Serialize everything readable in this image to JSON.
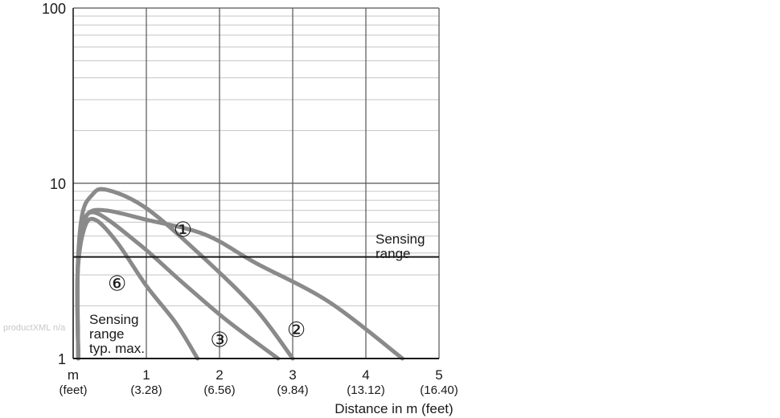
{
  "watermark": "productXML n/a",
  "chart_data": {
    "type": "line",
    "title": "",
    "xlabel": "Distance in m (feet)",
    "ylabel": "",
    "y_scale": "log",
    "ylim": [
      1,
      100
    ],
    "xlim": [
      0,
      5
    ],
    "grid": true,
    "x_ticks": [
      {
        "value": 0,
        "label": "m",
        "sub": "(feet)"
      },
      {
        "value": 1,
        "label": "1",
        "sub": "(3.28)"
      },
      {
        "value": 2,
        "label": "2",
        "sub": "(6.56)"
      },
      {
        "value": 3,
        "label": "3",
        "sub": "(9.84)"
      },
      {
        "value": 4,
        "label": "4",
        "sub": "(13.12)"
      },
      {
        "value": 5,
        "label": "5",
        "sub": "(16.40)"
      }
    ],
    "y_ticks": [
      {
        "value": 1,
        "label": "1"
      },
      {
        "value": 10,
        "label": "10"
      },
      {
        "value": 100,
        "label": "100"
      }
    ],
    "series": [
      {
        "marker": "①",
        "color": "#8a8a8a",
        "points": [
          [
            0.07,
            1
          ],
          [
            0.06,
            3
          ],
          [
            0.1,
            5
          ],
          [
            0.2,
            6.7
          ],
          [
            0.45,
            7.0
          ],
          [
            1.0,
            6.2
          ],
          [
            1.8,
            5.1
          ],
          [
            2.5,
            3.5
          ],
          [
            3.5,
            2.1
          ],
          [
            4.5,
            1.0
          ]
        ]
      },
      {
        "marker": "②",
        "color": "#8a8a8a",
        "points": [
          [
            0.07,
            1
          ],
          [
            0.06,
            3
          ],
          [
            0.12,
            6.5
          ],
          [
            0.25,
            8.5
          ],
          [
            0.45,
            9.2
          ],
          [
            1.0,
            7.2
          ],
          [
            1.8,
            3.7
          ],
          [
            2.5,
            1.9
          ],
          [
            3.0,
            1.0
          ]
        ]
      },
      {
        "marker": "③",
        "color": "#8a8a8a",
        "points": [
          [
            0.07,
            1
          ],
          [
            0.06,
            3
          ],
          [
            0.13,
            5.5
          ],
          [
            0.3,
            6.8
          ],
          [
            0.9,
            4.5
          ],
          [
            1.5,
            2.7
          ],
          [
            2.1,
            1.65
          ],
          [
            2.8,
            1.0
          ]
        ]
      },
      {
        "marker": "⑥",
        "color": "#8a8a8a",
        "points": [
          [
            0.07,
            1
          ],
          [
            0.06,
            3
          ],
          [
            0.15,
            5.5
          ],
          [
            0.3,
            6.2
          ],
          [
            0.6,
            4.6
          ],
          [
            1.0,
            2.6
          ],
          [
            1.4,
            1.6
          ],
          [
            1.7,
            1.0
          ]
        ]
      }
    ],
    "reference_line": {
      "value": 3.8,
      "label_line1": "Sensing",
      "label_line2": "range"
    },
    "annotations": [
      {
        "text": "①",
        "x": 1.5,
        "y": 5.4
      },
      {
        "text": "②",
        "x": 3.05,
        "y": 1.45
      },
      {
        "text": "③",
        "x": 2.0,
        "y": 1.27
      },
      {
        "text": "⑥",
        "x": 0.6,
        "y": 2.65
      }
    ],
    "typ_max_label": [
      "Sensing",
      "range",
      "typ. max."
    ]
  }
}
